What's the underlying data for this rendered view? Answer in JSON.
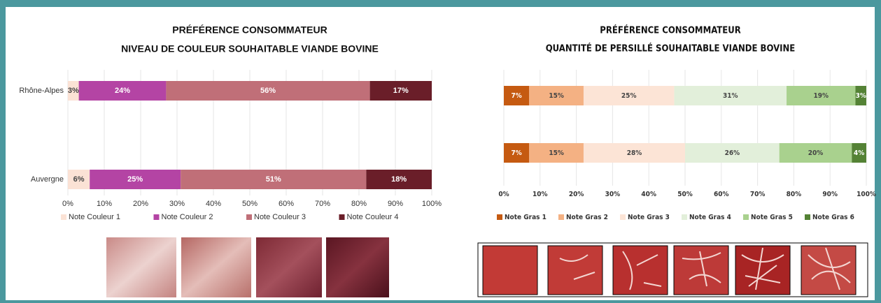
{
  "chart_data": [
    {
      "type": "stacked-bar",
      "title": "PRÉFÉRENCE CONSOMMATEUR",
      "subtitle": "NIVEAU DE COULEUR SOUHAITABLE VIANDE BOVINE",
      "categories": [
        "Rhône-Alpes",
        "Auvergne"
      ],
      "series": [
        {
          "name": "Note Couleur 1",
          "color": "#fbe2d5",
          "values": [
            3,
            6
          ],
          "value_labels": [
            "3%",
            "6%"
          ]
        },
        {
          "name": "Note Couleur 2",
          "color": "#b444a4",
          "values": [
            24,
            25
          ],
          "value_labels": [
            "24%",
            "25%"
          ]
        },
        {
          "name": "Note Couleur 3",
          "color": "#c06f78",
          "values": [
            56,
            51
          ],
          "value_labels": [
            "56%",
            "51%"
          ]
        },
        {
          "name": "Note Couleur 4",
          "color": "#6a1e29",
          "values": [
            17,
            18
          ],
          "value_labels": [
            "17%",
            "18%"
          ]
        }
      ],
      "xlim": [
        0,
        100
      ],
      "xticks": [
        {
          "value": 0,
          "label": "0%"
        },
        {
          "value": 10,
          "label": "10%"
        },
        {
          "value": 20,
          "label": "20%"
        },
        {
          "value": 30,
          "label": "30%"
        },
        {
          "value": 40,
          "label": "40%"
        },
        {
          "value": 50,
          "label": "50%"
        },
        {
          "value": 60,
          "label": "60%"
        },
        {
          "value": 70,
          "label": "70%"
        },
        {
          "value": 80,
          "label": "80%"
        },
        {
          "value": 90,
          "label": "90%"
        },
        {
          "value": 100,
          "label": "100%"
        }
      ]
    },
    {
      "type": "stacked-bar",
      "title": "PRÉFÉRENCE CONSOMMATEUR",
      "subtitle": "QUANTITÉ DE PERSILLÉ SOUHAITABLE VIANDE BOVINE",
      "categories": [
        null,
        null
      ],
      "series": [
        {
          "name": "Note Gras 1",
          "color": "#c55a11",
          "values": [
            7,
            7
          ],
          "value_labels": [
            "7%",
            "7%"
          ]
        },
        {
          "name": "Note Gras 2",
          "color": "#f4b183",
          "values": [
            15,
            15
          ],
          "value_labels": [
            "15%",
            "15%"
          ]
        },
        {
          "name": "Note Gras 3",
          "color": "#fce4d6",
          "values": [
            25,
            28
          ],
          "value_labels": [
            "25%",
            "28%"
          ]
        },
        {
          "name": "Note Gras 4",
          "color": "#e2efda",
          "values": [
            31,
            26
          ],
          "value_labels": [
            "31%",
            "26%"
          ]
        },
        {
          "name": "Note Gras 5",
          "color": "#a9d18e",
          "values": [
            19,
            20
          ],
          "value_labels": [
            "19%",
            "20%"
          ]
        },
        {
          "name": "Note Gras 6",
          "color": "#548235",
          "values": [
            3,
            4
          ],
          "value_labels": [
            "3%",
            "4%"
          ]
        }
      ],
      "xlim": [
        0,
        100
      ],
      "xticks": [
        {
          "value": 0,
          "label": "0%"
        },
        {
          "value": 10,
          "label": "10%"
        },
        {
          "value": 20,
          "label": "20%"
        },
        {
          "value": 30,
          "label": "30%"
        },
        {
          "value": 40,
          "label": "40%"
        },
        {
          "value": 50,
          "label": "50%"
        },
        {
          "value": 60,
          "label": "60%"
        },
        {
          "value": 70,
          "label": "70%"
        },
        {
          "value": 80,
          "label": "80%"
        },
        {
          "value": 90,
          "label": "90%"
        },
        {
          "value": 100,
          "label": "100%"
        }
      ]
    }
  ]
}
